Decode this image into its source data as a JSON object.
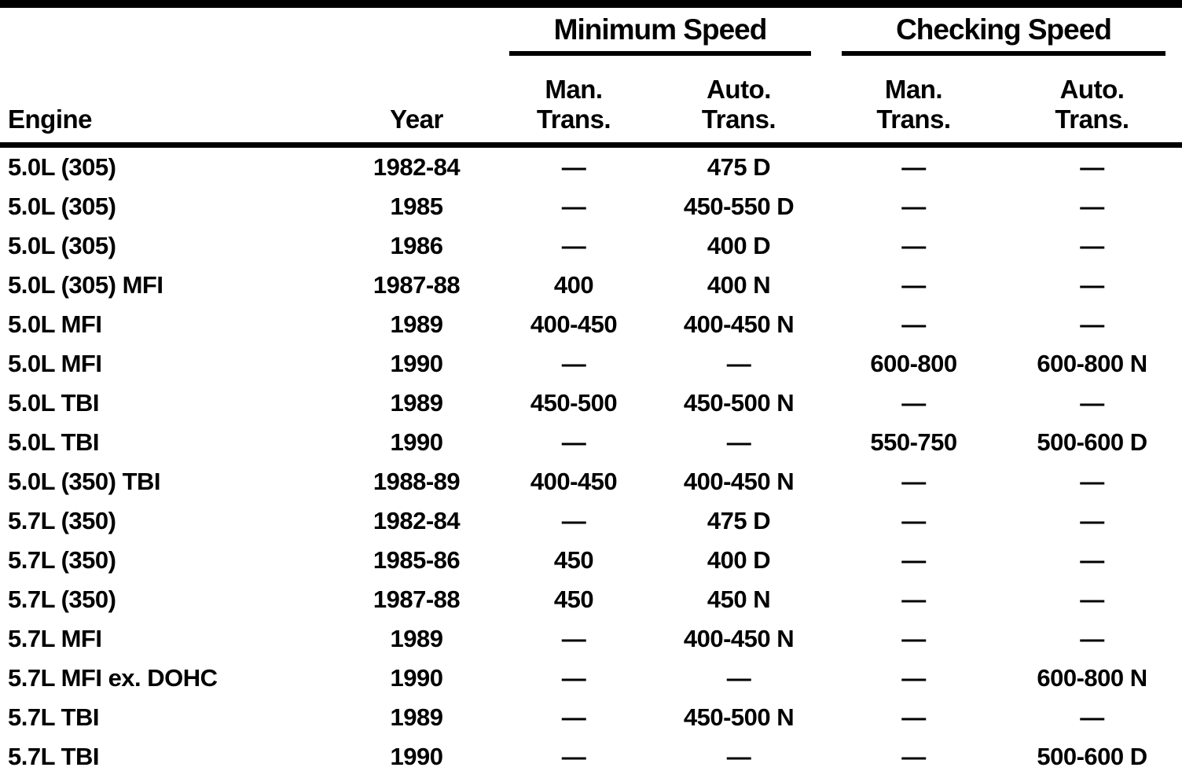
{
  "theme": {
    "ink": "#000000",
    "paper": "#ffffff"
  },
  "table": {
    "column_headers": {
      "engine": "Engine",
      "year": "Year"
    },
    "groups": [
      {
        "label": "Minimum Speed",
        "sub": [
          {
            "line1": "Man.",
            "line2": "Trans."
          },
          {
            "line1": "Auto.",
            "line2": "Trans."
          }
        ]
      },
      {
        "label": "Checking Speed",
        "sub": [
          {
            "line1": "Man.",
            "line2": "Trans."
          },
          {
            "line1": "Auto.",
            "line2": "Trans."
          }
        ]
      }
    ],
    "rows": [
      {
        "engine": "5.0L (305)",
        "year": "1982-84",
        "min_man": "—",
        "min_auto": "475 D",
        "chk_man": "—",
        "chk_auto": "—"
      },
      {
        "engine": "5.0L (305)",
        "year": "1985",
        "min_man": "—",
        "min_auto": "450-550 D",
        "chk_man": "—",
        "chk_auto": "—"
      },
      {
        "engine": "5.0L (305)",
        "year": "1986",
        "min_man": "—",
        "min_auto": "400 D",
        "chk_man": "—",
        "chk_auto": "—"
      },
      {
        "engine": "5.0L (305) MFI",
        "year": "1987-88",
        "min_man": "400",
        "min_auto": "400 N",
        "chk_man": "—",
        "chk_auto": "—"
      },
      {
        "engine": "5.0L MFI",
        "year": "1989",
        "min_man": "400-450",
        "min_auto": "400-450 N",
        "chk_man": "—",
        "chk_auto": "—"
      },
      {
        "engine": "5.0L MFI",
        "year": "1990",
        "min_man": "—",
        "min_auto": "—",
        "chk_man": "600-800",
        "chk_auto": "600-800 N"
      },
      {
        "engine": "5.0L TBI",
        "year": "1989",
        "min_man": "450-500",
        "min_auto": "450-500 N",
        "chk_man": "—",
        "chk_auto": "—"
      },
      {
        "engine": "5.0L TBI",
        "year": "1990",
        "min_man": "—",
        "min_auto": "—",
        "chk_man": "550-750",
        "chk_auto": "500-600 D"
      },
      {
        "engine": "5.0L (350) TBI",
        "year": "1988-89",
        "min_man": "400-450",
        "min_auto": "400-450 N",
        "chk_man": "—",
        "chk_auto": "—"
      },
      {
        "engine": "5.7L (350)",
        "year": "1982-84",
        "min_man": "—",
        "min_auto": "475 D",
        "chk_man": "—",
        "chk_auto": "—"
      },
      {
        "engine": "5.7L (350)",
        "year": "1985-86",
        "min_man": "450",
        "min_auto": "400 D",
        "chk_man": "—",
        "chk_auto": "—"
      },
      {
        "engine": "5.7L (350)",
        "year": "1987-88",
        "min_man": "450",
        "min_auto": "450 N",
        "chk_man": "—",
        "chk_auto": "—"
      },
      {
        "engine": "5.7L MFI",
        "year": "1989",
        "min_man": "—",
        "min_auto": "400-450 N",
        "chk_man": "—",
        "chk_auto": "—"
      },
      {
        "engine": "5.7L MFI ex. DOHC",
        "year": "1990",
        "min_man": "—",
        "min_auto": "—",
        "chk_man": "—",
        "chk_auto": "600-800 N"
      },
      {
        "engine": "5.7L TBI",
        "year": "1989",
        "min_man": "—",
        "min_auto": "450-500 N",
        "chk_man": "—",
        "chk_auto": "—"
      },
      {
        "engine": "5.7L TBI",
        "year": "1990",
        "min_man": "—",
        "min_auto": "—",
        "chk_man": "—",
        "chk_auto": "500-600 D"
      }
    ]
  }
}
